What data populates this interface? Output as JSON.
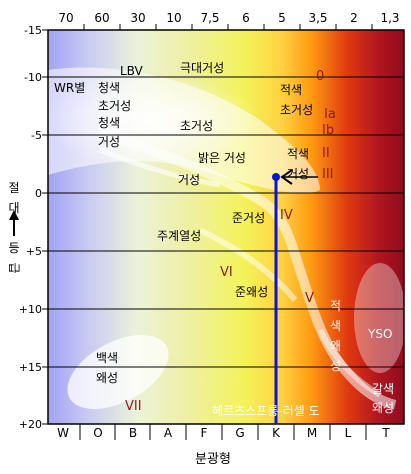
{
  "top_axis": {
    "ticks": [
      "70",
      "60",
      "30",
      "10",
      "7,5",
      "6",
      "5",
      "3,5",
      "2",
      "1,3"
    ]
  },
  "bottom_axis": {
    "ticks": [
      "W",
      "O",
      "B",
      "A",
      "F",
      "G",
      "K",
      "M",
      "L",
      "T"
    ],
    "title": "분광형"
  },
  "left_axis": {
    "ticks": [
      "-15",
      "-10",
      "-5",
      "0",
      "+5",
      "+10",
      "+15",
      "+20"
    ],
    "title_chars": [
      "절",
      "대",
      "등",
      "급"
    ]
  },
  "region_labels": {
    "lbv": "LBV",
    "wr": "WR별",
    "hypergiant": "극대거성",
    "blue_supergiant_1": "청색",
    "blue_supergiant_2": "초거성",
    "blue_giant_1": "청색",
    "blue_giant_2": "거성",
    "supergiant": "초거성",
    "red_supergiant_1": "적색",
    "red_supergiant_2": "초거성",
    "bright_giant": "밝은 거성",
    "red_giant_1": "적색",
    "red_giant_2": "거성",
    "giant": "거성",
    "subgiant": "준거성",
    "main_sequence": "주계열성",
    "subdwarf": "준왜성",
    "red_dwarf_chars": [
      "적",
      "색",
      "왜",
      "성"
    ],
    "white_dwarf_1": "백색",
    "white_dwarf_2": "왜성",
    "brown_dwarf_1": "갈색",
    "brown_dwarf_2": "왜성",
    "yso": "YSO",
    "diagram_title": "헤르츠스프룽-러셀 도"
  },
  "luminosity_classes": {
    "c0": "0",
    "c1a": "Ia",
    "c1b": "Ib",
    "c2": "II",
    "c3": "III",
    "c4": "IV",
    "c5": "V",
    "c6": "VI",
    "c7": "VII"
  },
  "colors": {
    "class_roman": "#8b1a10",
    "marker": "#0a14d8",
    "text": "#000000",
    "overlay_text": "#ffffff",
    "spectrum_blue": "#a7a7f5",
    "spectrum_yellow": "#f2f25a",
    "spectrum_orange": "#ff9a10",
    "spectrum_red": "#9a0d20"
  },
  "icons": {
    "axis_arrow": "up-arrow-icon",
    "sun_marker": "sun-position-marker"
  }
}
